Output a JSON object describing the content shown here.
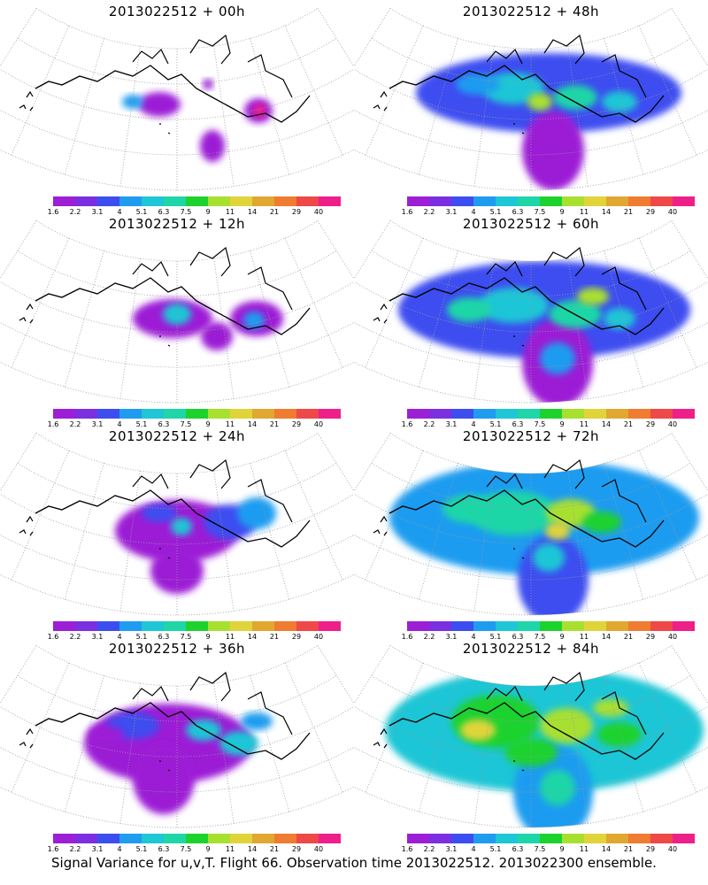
{
  "colorbar": {
    "colors": [
      "#9c1fd6",
      "#7b2fe0",
      "#3d4ef0",
      "#1f9cf0",
      "#1fc6d6",
      "#1fd6a8",
      "#1ed22e",
      "#a8e030",
      "#e0d43a",
      "#e0a830",
      "#ef7c30",
      "#ef4848",
      "#ef1f8a"
    ],
    "ticks": [
      "1.6",
      "2.2",
      "3.1",
      "4",
      "5.1",
      "6.3",
      "7.5",
      "9",
      "11",
      "14",
      "21",
      "29",
      "40"
    ]
  },
  "panels": [
    {
      "title": "2013022512 + 00h",
      "level": 0
    },
    {
      "title": "2013022512 + 48h",
      "level": 4
    },
    {
      "title": "2013022512 + 12h",
      "level": 1
    },
    {
      "title": "2013022512 + 60h",
      "level": 5
    },
    {
      "title": "2013022512 + 24h",
      "level": 2
    },
    {
      "title": "2013022512 + 72h",
      "level": 6
    },
    {
      "title": "2013022512 + 36h",
      "level": 3
    },
    {
      "title": "2013022512 + 84h",
      "level": 7
    }
  ],
  "footer": "Signal Variance for u,v,T. Flight 66. Observation time 2013022512. 2013022300 ensemble."
}
